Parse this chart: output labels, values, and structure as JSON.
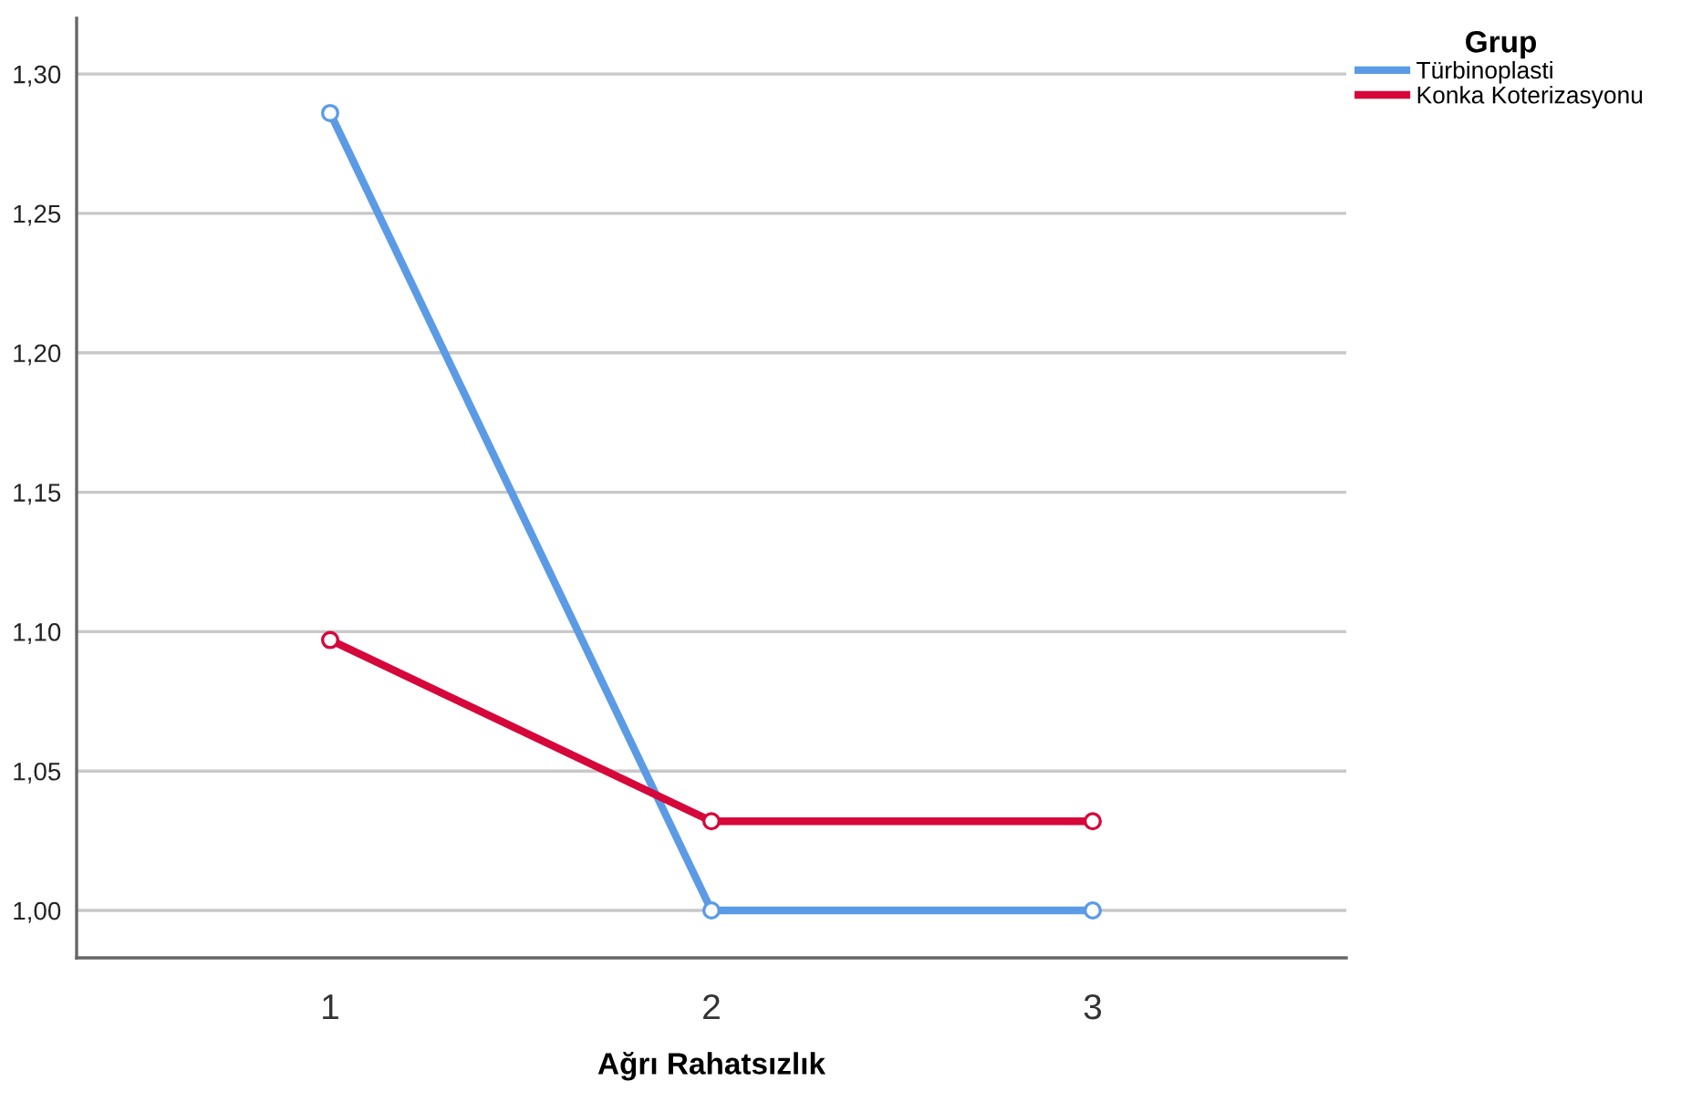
{
  "chart_data": {
    "type": "line",
    "xlabel": "Ağrı Rahatsızlık",
    "legend_title": "Grup",
    "categories": [
      "1",
      "2",
      "3"
    ],
    "series": [
      {
        "name": "Türbinoplasti",
        "color": "#5b9be6",
        "values": [
          1.286,
          1.0,
          1.0
        ]
      },
      {
        "name": "Konka Koterizasyonu",
        "color": "#d6073a",
        "values": [
          1.097,
          1.032,
          1.032
        ]
      }
    ],
    "ylim": [
      0.983,
      1.32
    ],
    "yticks": [
      {
        "value": 1.0,
        "label": "1,00"
      },
      {
        "value": 1.05,
        "label": "1,05"
      },
      {
        "value": 1.1,
        "label": "1,10"
      },
      {
        "value": 1.15,
        "label": "1,15"
      },
      {
        "value": 1.2,
        "label": "1,20"
      },
      {
        "value": 1.25,
        "label": "1,25"
      },
      {
        "value": 1.3,
        "label": "1,30"
      }
    ],
    "grid": "y",
    "legend": "top right",
    "marker": "circle",
    "line_style": "solid"
  }
}
